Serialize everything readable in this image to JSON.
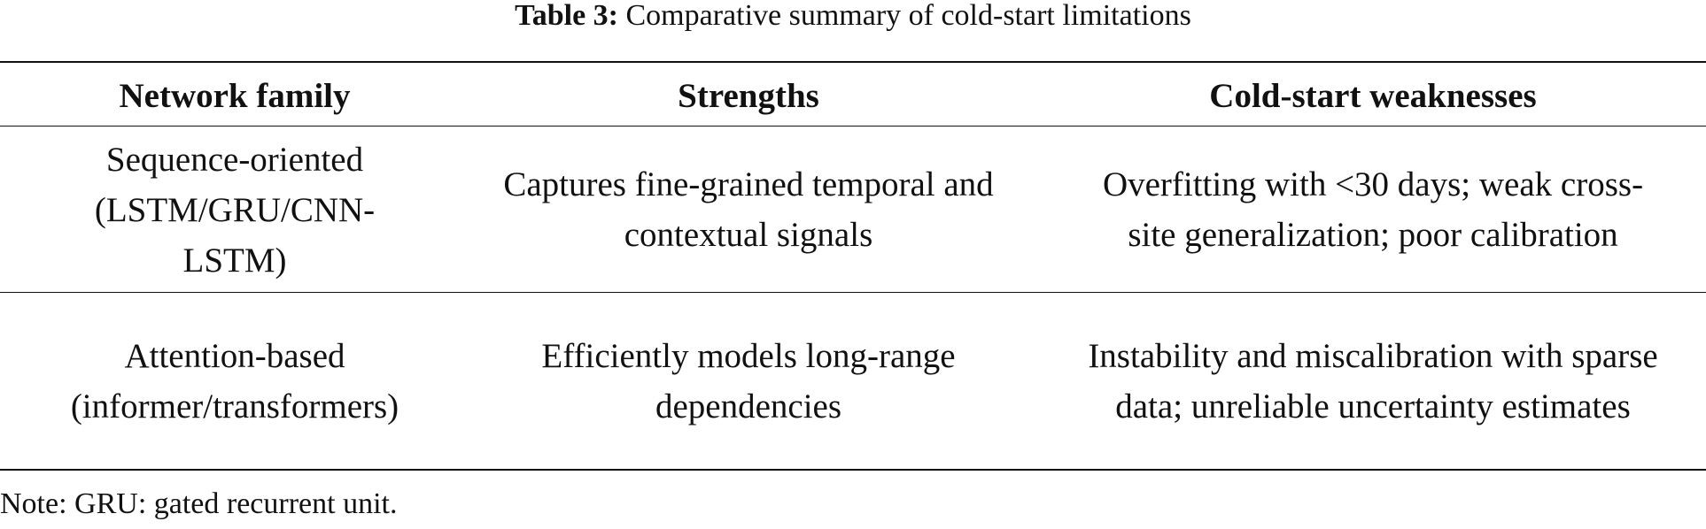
{
  "caption": {
    "label": "Table 3:",
    "text": " Comparative summary of cold-start limitations"
  },
  "table": {
    "headers": [
      "Network family",
      "Strengths",
      "Cold-start weaknesses"
    ],
    "rows": [
      [
        "Sequence-oriented (LSTM/GRU/CNN-LSTM)",
        "Captures fine-grained temporal and contextual signals",
        "Overfitting with <30 days; weak cross-site generalization; poor calibration"
      ],
      [
        "Attention-based (informer/transformers)",
        "Efficiently models long-range dependencies",
        "Instability and miscalibration with sparse data; unreliable uncertainty estimates"
      ]
    ]
  },
  "note": "Note: GRU: gated recurrent unit."
}
